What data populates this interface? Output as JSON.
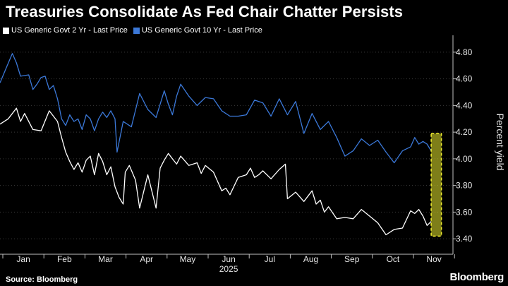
{
  "chart_data": {
    "type": "line",
    "title": "Treasuries Consolidate As Fed Chair Chatter Persists",
    "ylabel": "Percent yield",
    "xlabel": "2025",
    "ylim": [
      3.3,
      4.9
    ],
    "yticks": [
      3.4,
      3.6,
      3.8,
      4.0,
      4.2,
      4.4,
      4.6,
      4.8
    ],
    "ytick_labels": [
      "3.40",
      "3.60",
      "3.80",
      "4.00",
      "4.20",
      "4.40",
      "4.60",
      "4.80"
    ],
    "x_months": [
      "Jan",
      "Feb",
      "Mar",
      "Apr",
      "May",
      "Jun",
      "Jul",
      "Aug",
      "Sep",
      "Oct",
      "Nov"
    ],
    "series": [
      {
        "name": "US Generic Govt 2 Yr - Last Price",
        "color": "#ffffff",
        "x": [
          0,
          0.2,
          0.4,
          0.5,
          0.6,
          0.8,
          1.0,
          1.2,
          1.4,
          1.5,
          1.6,
          1.7,
          1.8,
          1.9,
          2.0,
          2.1,
          2.2,
          2.3,
          2.4,
          2.5,
          2.6,
          2.7,
          2.8,
          2.9,
          3.0,
          3.05,
          3.15,
          3.3,
          3.4,
          3.6,
          3.8,
          3.9,
          4.0,
          4.1,
          4.2,
          4.3,
          4.4,
          4.6,
          4.8,
          4.9,
          5.0,
          5.2,
          5.4,
          5.5,
          5.6,
          5.8,
          6.0,
          6.1,
          6.2,
          6.3,
          6.4,
          6.6,
          6.8,
          6.95,
          7.0,
          7.2,
          7.4,
          7.6,
          7.7,
          7.8,
          7.9,
          8.0,
          8.2,
          8.4,
          8.6,
          8.8,
          9.0,
          9.2,
          9.4,
          9.6,
          9.8,
          10.0,
          10.1,
          10.2,
          10.3,
          10.4,
          10.5
        ],
        "values": [
          4.26,
          4.3,
          4.38,
          4.28,
          4.34,
          4.22,
          4.21,
          4.36,
          4.28,
          4.16,
          4.05,
          3.98,
          3.92,
          3.97,
          3.9,
          3.99,
          4.02,
          3.88,
          4.04,
          3.98,
          3.88,
          3.94,
          3.79,
          3.71,
          3.66,
          3.9,
          3.95,
          3.84,
          3.63,
          3.88,
          3.63,
          3.93,
          3.99,
          4.04,
          4.0,
          3.96,
          4.02,
          3.95,
          3.97,
          3.89,
          3.95,
          3.9,
          3.76,
          3.78,
          3.73,
          3.86,
          3.88,
          3.93,
          3.86,
          3.88,
          3.91,
          3.85,
          3.92,
          3.96,
          3.7,
          3.75,
          3.68,
          3.76,
          3.66,
          3.69,
          3.6,
          3.64,
          3.55,
          3.56,
          3.55,
          3.62,
          3.57,
          3.52,
          3.43,
          3.47,
          3.48,
          3.61,
          3.59,
          3.62,
          3.57,
          3.5,
          3.53
        ]
      },
      {
        "name": "US Generic Govt 10 Yr - Last Price",
        "color": "#3b78d8",
        "x": [
          0,
          0.15,
          0.3,
          0.4,
          0.5,
          0.7,
          0.8,
          0.9,
          1.0,
          1.1,
          1.2,
          1.3,
          1.4,
          1.5,
          1.6,
          1.7,
          1.8,
          1.9,
          2.0,
          2.1,
          2.2,
          2.3,
          2.4,
          2.5,
          2.6,
          2.7,
          2.8,
          2.85,
          3.0,
          3.2,
          3.4,
          3.6,
          3.8,
          4.0,
          4.1,
          4.2,
          4.3,
          4.4,
          4.6,
          4.8,
          5.0,
          5.2,
          5.4,
          5.6,
          5.8,
          6.0,
          6.2,
          6.4,
          6.6,
          6.8,
          7.0,
          7.2,
          7.4,
          7.6,
          7.8,
          8.0,
          8.2,
          8.4,
          8.6,
          8.8,
          9.0,
          9.2,
          9.4,
          9.6,
          9.8,
          10.0,
          10.1,
          10.2,
          10.3,
          10.4,
          10.5
        ],
        "values": [
          4.57,
          4.68,
          4.79,
          4.72,
          4.62,
          4.63,
          4.52,
          4.56,
          4.61,
          4.62,
          4.52,
          4.55,
          4.45,
          4.3,
          4.25,
          4.33,
          4.28,
          4.3,
          4.22,
          4.33,
          4.3,
          4.21,
          4.3,
          4.35,
          4.31,
          4.36,
          4.3,
          4.05,
          4.28,
          4.24,
          4.49,
          4.37,
          4.31,
          4.51,
          4.41,
          4.33,
          4.47,
          4.56,
          4.47,
          4.4,
          4.46,
          4.45,
          4.36,
          4.32,
          4.32,
          4.33,
          4.44,
          4.42,
          4.32,
          4.45,
          4.33,
          4.43,
          4.19,
          4.34,
          4.22,
          4.28,
          4.16,
          4.02,
          4.06,
          4.15,
          4.1,
          4.14,
          4.05,
          3.97,
          4.06,
          4.09,
          4.16,
          4.11,
          4.13,
          4.11,
          4.06
        ]
      }
    ],
    "highlight": {
      "x_range": [
        10.5,
        10.75
      ],
      "y_range": [
        3.42,
        4.19
      ],
      "fill": "#e6e62e",
      "stroke": "#f2ef2e"
    }
  },
  "source_label": "Source: Bloomberg",
  "brand_label": "Bloomberg"
}
